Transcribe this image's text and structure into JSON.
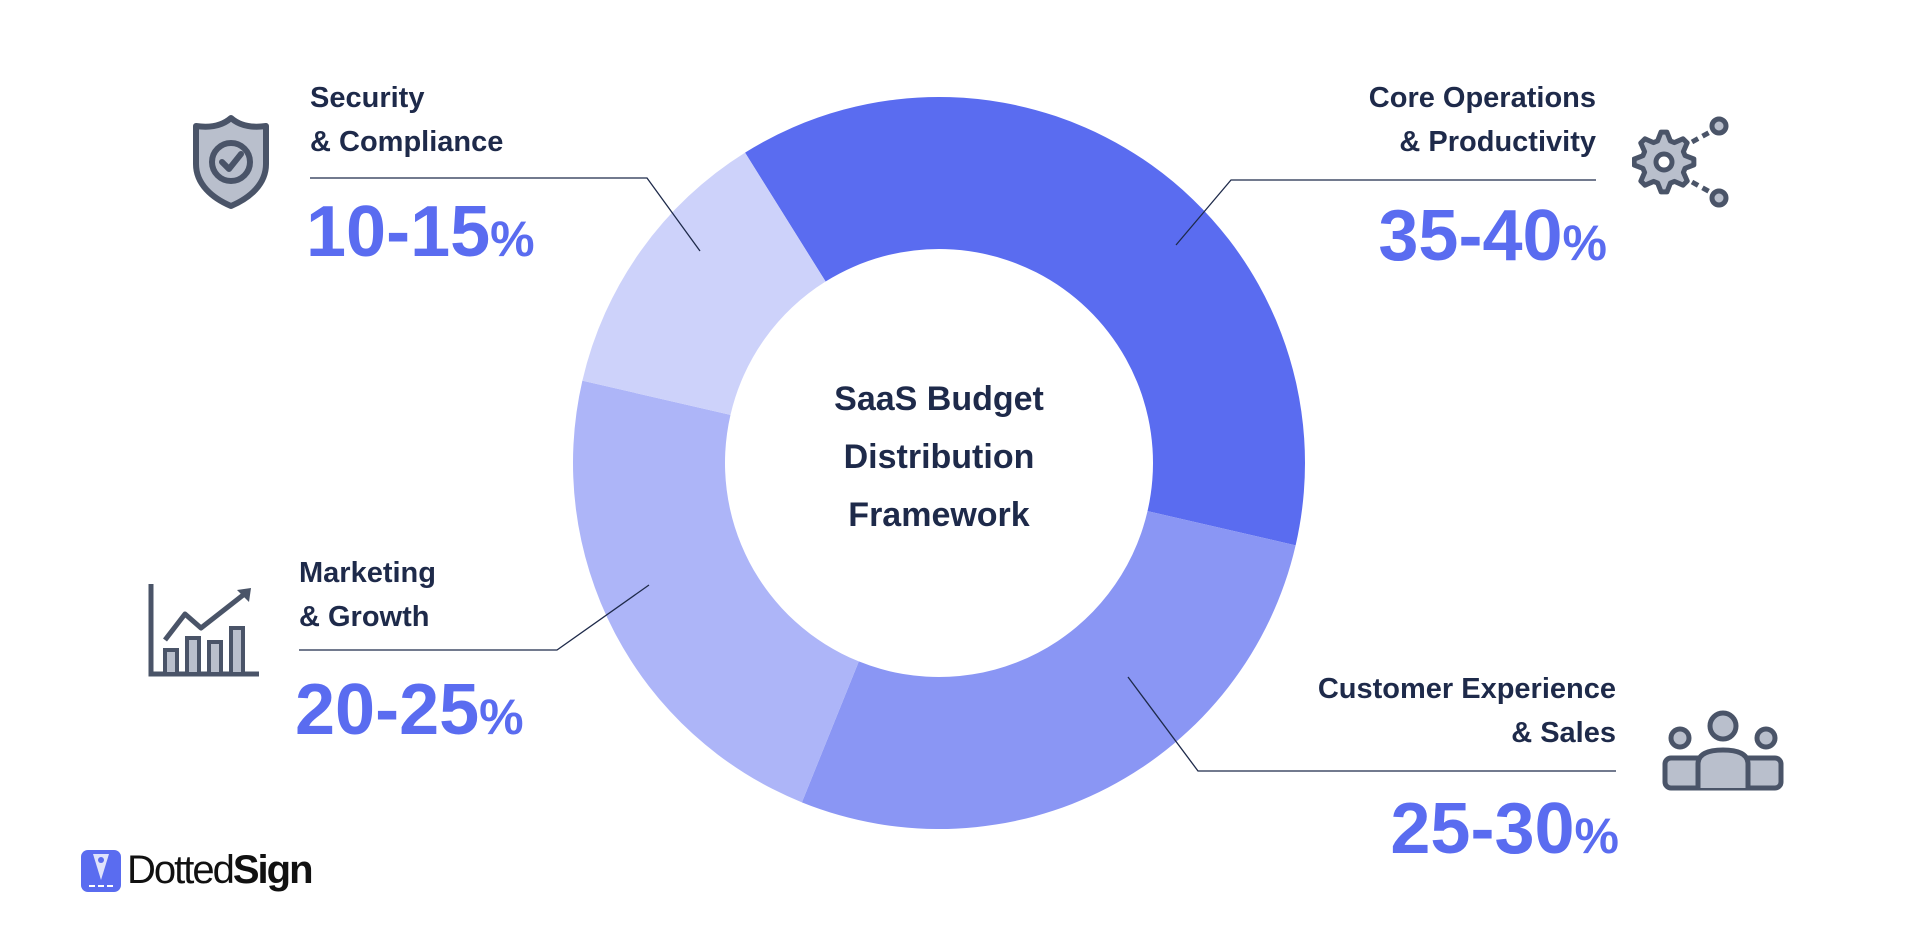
{
  "title": "SaaS Budget Distribution Framework",
  "title_lines": [
    "SaaS Budget",
    "Distribution",
    "Framework"
  ],
  "colors": {
    "text": "#1e2a4a",
    "accent": "#5a6cf0",
    "icon": "#4a5468",
    "icon_fill": "#b9bfcc"
  },
  "chart_data": {
    "type": "pie",
    "variant": "donut",
    "title": "SaaS Budget Distribution Framework",
    "unit": "%",
    "series": [
      {
        "name": "Core Operations & Productivity",
        "label_lines": [
          "Core Operations",
          "& Productivity"
        ],
        "range": [
          35,
          40
        ],
        "range_text": "35-40",
        "color": "#5a6cf0",
        "icon": "gear-network-icon"
      },
      {
        "name": "Customer Experience & Sales",
        "label_lines": [
          "Customer Experience",
          "& Sales"
        ],
        "range": [
          25,
          30
        ],
        "range_text": "25-30",
        "color": "#8a96f4",
        "icon": "people-group-icon"
      },
      {
        "name": "Marketing & Growth",
        "label_lines": [
          "Marketing",
          "& Growth"
        ],
        "range": [
          20,
          25
        ],
        "range_text": "20-25",
        "color": "#adb5f8",
        "icon": "growth-chart-icon"
      },
      {
        "name": "Security & Compliance",
        "label_lines": [
          "Security",
          "& Compliance"
        ],
        "range": [
          10,
          15
        ],
        "range_text": "10-15",
        "color": "#cdd2fa",
        "icon": "shield-check-icon"
      }
    ]
  },
  "percent_sign": "%",
  "logo": {
    "text_light": "Dotted",
    "text_bold": "Sign"
  }
}
